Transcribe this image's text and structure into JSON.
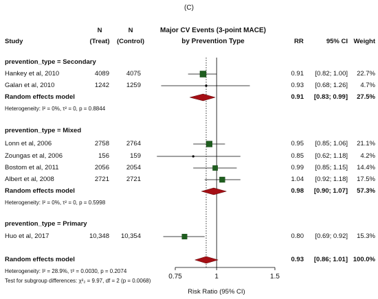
{
  "panel_label": "(C)",
  "header": {
    "study": "Study",
    "n_treat_top": "N",
    "n_treat_bottom": "(Treat)",
    "n_control_top": "N",
    "n_control_bottom": "(Control)",
    "title_line1": "Major CV Events (3-point MACE)",
    "title_line2": "by Prevention Type",
    "rr": "RR",
    "ci": "95% CI",
    "weight": "Weight"
  },
  "chart_data": {
    "type": "forest",
    "xlabel": "Risk Ratio (95% CI)",
    "xscale": "log",
    "xlim": [
      0.75,
      1.5
    ],
    "ticks": [
      "0.75",
      "1",
      "1.5"
    ],
    "tick_values": [
      0.75,
      1,
      1.5
    ],
    "reference_line": 1,
    "overall_dotted_line": 0.93,
    "groups": [
      {
        "label": "prevention_type = Secondary",
        "studies": [
          {
            "name": "Hankey et al, 2010",
            "n_treat": "4089",
            "n_control": "4075",
            "rr": 0.91,
            "lo": 0.82,
            "hi": 1.0,
            "rr_text": "0.91",
            "ci_text": "[0.82; 1.00]",
            "weight_text": "22.7%"
          },
          {
            "name": "Galan et al, 2010",
            "n_treat": "1242",
            "n_control": "1259",
            "rr": 0.93,
            "lo": 0.68,
            "hi": 1.26,
            "rr_text": "0.93",
            "ci_text": "[0.68; 1.26]",
            "weight_text": "4.7%"
          }
        ],
        "summary": {
          "label": "Random effects model",
          "rr": 0.91,
          "lo": 0.83,
          "hi": 0.99,
          "rr_text": "0.91",
          "ci_text": "[0.83; 0.99]",
          "weight_text": "27.5%"
        },
        "heterogeneity": "Heterogeneity: I² = 0%, τ² = 0, p = 0.8844"
      },
      {
        "label": "prevention_type = Mixed",
        "studies": [
          {
            "name": "Lonn et al, 2006",
            "n_treat": "2758",
            "n_control": "2764",
            "rr": 0.95,
            "lo": 0.85,
            "hi": 1.06,
            "rr_text": "0.95",
            "ci_text": "[0.85; 1.06]",
            "weight_text": "21.1%"
          },
          {
            "name": "Zoungas et al, 2006",
            "n_treat": "156",
            "n_control": "159",
            "rr": 0.85,
            "lo": 0.62,
            "hi": 1.18,
            "rr_text": "0.85",
            "ci_text": "[0.62; 1.18]",
            "weight_text": "4.2%"
          },
          {
            "name": "Bostom et al, 2011",
            "n_treat": "2056",
            "n_control": "2054",
            "rr": 0.99,
            "lo": 0.85,
            "hi": 1.15,
            "rr_text": "0.99",
            "ci_text": "[0.85; 1.15]",
            "weight_text": "14.4%"
          },
          {
            "name": "Albert et al, 2008",
            "n_treat": "2721",
            "n_control": "2721",
            "rr": 1.04,
            "lo": 0.92,
            "hi": 1.18,
            "rr_text": "1.04",
            "ci_text": "[0.92; 1.18]",
            "weight_text": "17.5%"
          }
        ],
        "summary": {
          "label": "Random effects model",
          "rr": 0.98,
          "lo": 0.9,
          "hi": 1.07,
          "rr_text": "0.98",
          "ci_text": "[0.90; 1.07]",
          "weight_text": "57.3%"
        },
        "heterogeneity": "Heterogeneity: I² = 0%, τ² = 0, p = 0.5998"
      },
      {
        "label": "prevention_type = Primary",
        "studies": [
          {
            "name": "Huo et al, 2017",
            "n_treat": "10,348",
            "n_control": "10,354",
            "rr": 0.8,
            "lo": 0.69,
            "hi": 0.92,
            "rr_text": "0.80",
            "ci_text": "[0.69; 0.92]",
            "weight_text": "15.3%"
          }
        ]
      }
    ],
    "overall": {
      "label": "Random effects model",
      "rr": 0.93,
      "lo": 0.86,
      "hi": 1.01,
      "rr_text": "0.93",
      "ci_text": "[0.86; 1.01]",
      "weight_text": "100.0%",
      "heterogeneity": "Heterogeneity: I² = 28.9%, τ² = 0.0030, p = 0.2074",
      "subgroup_test": "Test for subgroup differences: χ²₂ = 9.97, df = 2 (p = 0.0068)"
    },
    "colors": {
      "square": "#1f5e1f",
      "diamond": "#a50f15",
      "line": "#000000"
    }
  }
}
